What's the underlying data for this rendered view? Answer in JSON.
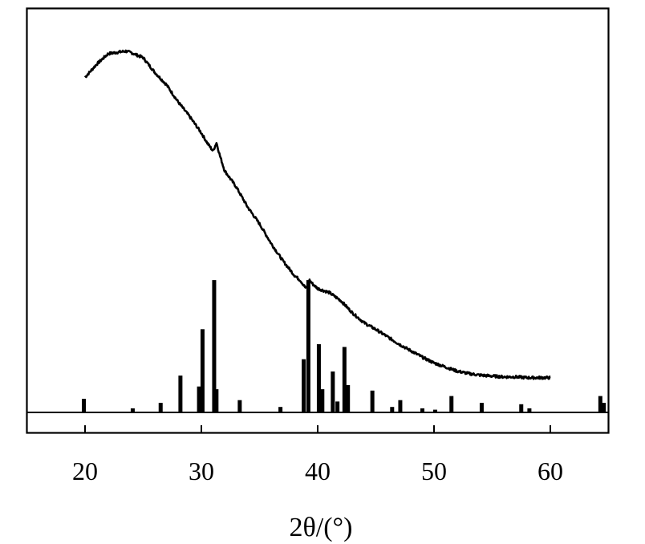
{
  "chart_data": {
    "type": "line",
    "title": "",
    "xlabel": "2θ/(°)",
    "ylabel": "",
    "xlim": [
      15,
      65
    ],
    "xticks": [
      20,
      30,
      40,
      50,
      60
    ],
    "grid": false,
    "legend": "none",
    "line_color": "#000000",
    "series": [
      {
        "type": "line",
        "x": [
          20,
          21,
          22,
          23,
          23.5,
          24,
          25,
          26,
          27,
          28,
          29,
          30,
          30.5,
          31,
          31.3,
          31.6,
          32,
          33,
          34,
          35,
          36,
          37,
          38,
          38.5,
          39,
          39.3,
          39.6,
          40,
          41,
          42,
          43,
          44,
          45,
          46,
          47,
          48,
          49,
          50,
          51,
          52,
          53,
          54,
          55,
          56,
          57,
          58,
          59,
          60
        ],
        "y": [
          380,
          396,
          409,
          411,
          412,
          410,
          404,
          386,
          371,
          350,
          332,
          312,
          300,
          290,
          300,
          284,
          266,
          246,
          221,
          201,
          177,
          156,
          138,
          132,
          122,
          132,
          127,
          122,
          117,
          107,
          92,
          80,
          72,
          63,
          54,
          46,
          38,
          31,
          26,
          21,
          18,
          16,
          15,
          14,
          14,
          13,
          13,
          13
        ]
      },
      {
        "type": "bar",
        "x": [
          19.9,
          24.1,
          26.5,
          28.2,
          29.8,
          30.1,
          31.1,
          31.3,
          33.3,
          36.8,
          38.8,
          39.2,
          40.1,
          40.4,
          41.3,
          41.7,
          42.3,
          42.6,
          44.7,
          46.4,
          47.1,
          49.0,
          50.1,
          51.5,
          54.1,
          57.5,
          58.2,
          64.3,
          64.6
        ],
        "y": [
          10,
          3,
          7,
          27,
          19,
          61,
          97,
          17,
          9,
          4,
          39,
          97,
          50,
          17,
          30,
          8,
          48,
          20,
          16,
          4,
          9,
          3,
          2,
          12,
          7,
          6,
          3,
          12,
          7
        ]
      }
    ]
  }
}
